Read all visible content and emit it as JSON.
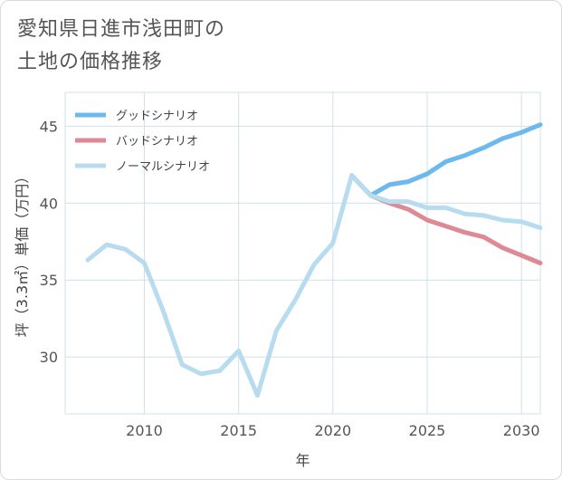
{
  "title_lines": [
    "愛知県日進市浅田町の",
    "土地の価格推移"
  ],
  "colors": {
    "good": "#6cb9ee",
    "bad": "#dd8a94",
    "normal": "#b8dcef",
    "grid": "#cfe0ea",
    "text": "#555555"
  },
  "chart_data": {
    "type": "line",
    "title": "愛知県日進市浅田町の土地の価格推移",
    "xlabel": "年",
    "ylabel": "坪（3.3㎡）単価（万円）",
    "xlim": [
      2005.8,
      2031
    ],
    "ylim": [
      26.3,
      47.2
    ],
    "xticks": [
      2010,
      2015,
      2020,
      2025,
      2030
    ],
    "yticks": [
      30,
      35,
      40,
      45
    ],
    "grid": true,
    "legend_position": "top-left",
    "series": [
      {
        "name": "グッドシナリオ",
        "color_key": "good",
        "x": [
          2021,
          2022,
          2023,
          2024,
          2025,
          2026,
          2027,
          2028,
          2029,
          2030,
          2031
        ],
        "y": [
          41.8,
          40.5,
          41.2,
          41.4,
          41.9,
          42.7,
          43.1,
          43.6,
          44.2,
          44.6,
          45.1
        ]
      },
      {
        "name": "バッドシナリオ",
        "color_key": "bad",
        "x": [
          2021,
          2022,
          2023,
          2024,
          2025,
          2026,
          2027,
          2028,
          2029,
          2030,
          2031
        ],
        "y": [
          41.8,
          40.5,
          40.0,
          39.6,
          38.9,
          38.5,
          38.1,
          37.8,
          37.1,
          36.6,
          36.1
        ]
      },
      {
        "name": "ノーマルシナリオ",
        "color_key": "normal",
        "x": [
          2007,
          2008,
          2009,
          2010,
          2011,
          2012,
          2013,
          2014,
          2015,
          2016,
          2017,
          2018,
          2019,
          2020,
          2021,
          2022,
          2023,
          2024,
          2025,
          2026,
          2027,
          2028,
          2029,
          2030,
          2031
        ],
        "y": [
          36.3,
          37.3,
          37.0,
          36.1,
          33.0,
          29.5,
          28.9,
          29.1,
          30.4,
          27.5,
          31.7,
          33.7,
          36.0,
          37.4,
          41.8,
          40.5,
          40.1,
          40.1,
          39.7,
          39.7,
          39.3,
          39.2,
          38.9,
          38.8,
          38.4
        ]
      }
    ]
  }
}
